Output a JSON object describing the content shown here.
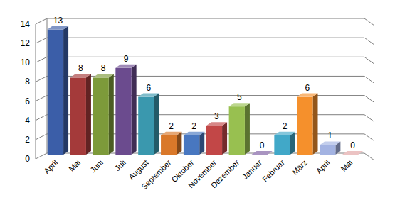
{
  "chart_data": {
    "type": "bar",
    "categories": [
      "April",
      "Mai",
      "Juni",
      "Juli",
      "August",
      "September",
      "Oktober",
      "November",
      "Dezember",
      "Januar",
      "Februar",
      "März",
      "April",
      "Mai"
    ],
    "values": [
      13,
      8,
      8,
      9,
      6,
      2,
      2,
      3,
      5,
      0,
      2,
      6,
      1,
      0
    ],
    "colors": [
      "#3b5ea8",
      "#a43a3a",
      "#7d9a3a",
      "#6b4b8e",
      "#3a98ae",
      "#d9782a",
      "#4877c0",
      "#c24747",
      "#98c050",
      "#7a5aa0",
      "#41a8c8",
      "#f5902c",
      "#a3b3e2",
      "#e2a2a2"
    ],
    "ylim": [
      0,
      14
    ],
    "yticks": [
      0,
      2,
      4,
      6,
      8,
      10,
      12,
      14
    ],
    "grid": true,
    "data_labels": true
  }
}
